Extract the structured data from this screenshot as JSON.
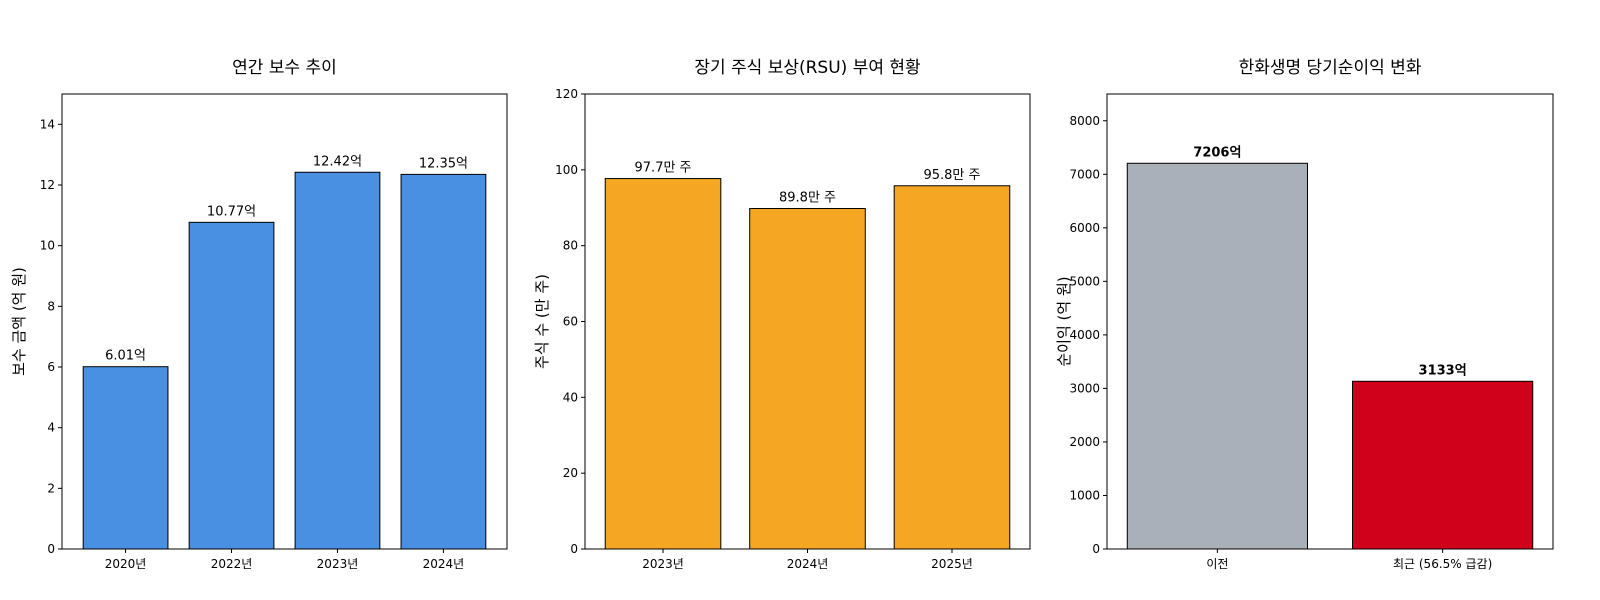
{
  "chart_data": [
    {
      "type": "bar",
      "title": "연간 보수 추이",
      "xlabel": "",
      "ylabel": "보수 금액 (억 원)",
      "categories": [
        "2020년",
        "2022년",
        "2023년",
        "2024년"
      ],
      "values": [
        6.01,
        10.77,
        12.42,
        12.35
      ],
      "data_labels": [
        "6.01억",
        "10.77억",
        "12.42억",
        "12.35억"
      ],
      "ylim": [
        0,
        15
      ],
      "yticks": [
        0,
        2,
        4,
        6,
        8,
        10,
        12,
        14
      ],
      "colors": [
        "#4a90e2",
        "#4a90e2",
        "#4a90e2",
        "#4a90e2"
      ],
      "bold_labels": false,
      "grid": false
    },
    {
      "type": "bar",
      "title": "장기 주식 보상(RSU) 부여 현황",
      "xlabel": "",
      "ylabel": "주식 수 (만 주)",
      "categories": [
        "2023년",
        "2024년",
        "2025년"
      ],
      "values": [
        97.7,
        89.8,
        95.8
      ],
      "data_labels": [
        "97.7만 주",
        "89.8만 주",
        "95.8만 주"
      ],
      "ylim": [
        0,
        120
      ],
      "yticks": [
        0,
        20,
        40,
        60,
        80,
        100,
        120
      ],
      "colors": [
        "#f5a623",
        "#f5a623",
        "#f5a623"
      ],
      "bold_labels": false,
      "grid": false
    },
    {
      "type": "bar",
      "title": "한화생명 당기순이익 변화",
      "xlabel": "",
      "ylabel": "순이익 (억 원)",
      "categories": [
        "이전",
        "최근 (56.5% 급감)"
      ],
      "values": [
        7206,
        3133
      ],
      "data_labels": [
        "7206억",
        "3133억"
      ],
      "ylim": [
        0,
        8500
      ],
      "yticks": [
        0,
        1000,
        2000,
        3000,
        4000,
        5000,
        6000,
        7000,
        8000
      ],
      "colors": [
        "#a9b0b9",
        "#d0021b"
      ],
      "bold_labels": true,
      "grid": false
    }
  ]
}
